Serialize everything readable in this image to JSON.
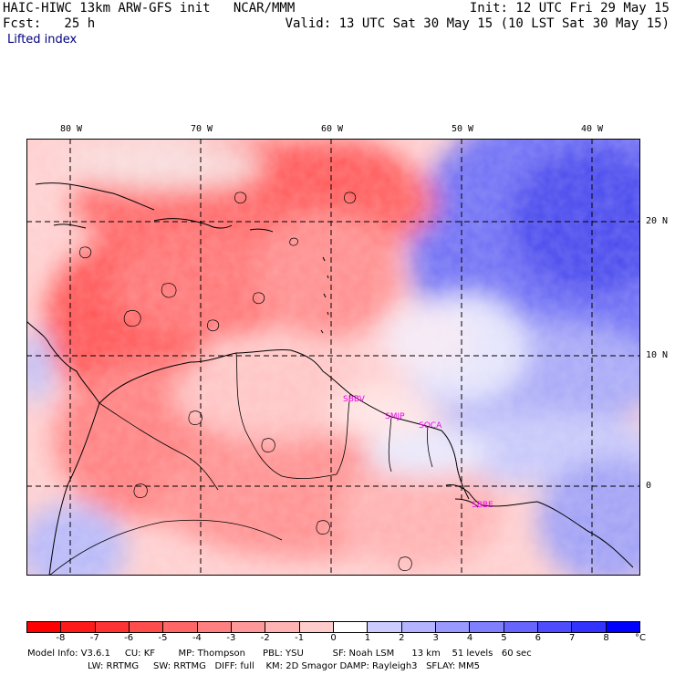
{
  "header": {
    "model_line": "HAIC-HIWC 13km ARW-GFS init   NCAR/MMM",
    "init_line": "Init: 12 UTC Fri 29 May 15",
    "fcst_line": "Fcst:   25 h",
    "valid_line": "Valid: 13 UTC Sat 30 May 15 (10 LST Sat 30 May 15)",
    "field_name": "Lifted index"
  },
  "axes": {
    "lon_labels": [
      "80 W",
      "70 W",
      "60 W",
      "50 W",
      "40 W"
    ],
    "lat_labels": [
      "20 N",
      "10 N",
      "0"
    ]
  },
  "stations": [
    "SBBV",
    "SMJP",
    "SOCA",
    "SBBE"
  ],
  "colorbar": {
    "unit": "°C",
    "ticks": [
      "-8",
      "-7",
      "-6",
      "-5",
      "-4",
      "-3",
      "-2",
      "-1",
      "0",
      "1",
      "2",
      "3",
      "4",
      "5",
      "6",
      "7",
      "8"
    ],
    "colors": [
      "#ff0000",
      "#ff1a1a",
      "#ff3333",
      "#ff4d4d",
      "#ff6666",
      "#ff8080",
      "#ff9999",
      "#ffb3b3",
      "#ffcccc",
      "#ffffff",
      "#ccccff",
      "#b3b3ff",
      "#9999ff",
      "#8080ff",
      "#6666ff",
      "#4d4dff",
      "#3333ff",
      "#0000ff"
    ]
  },
  "footer": {
    "line1": "Model Info: V3.6.1     CU: KF        MP: Thompson      PBL: YSU          SF: Noah LSM      13 km    51 levels   60 sec",
    "line2": "LW: RRTMG     SW: RRTMG   DIFF: full    KM: 2D Smagor DAMP: Rayleigh3   SFLAY: MM5"
  }
}
